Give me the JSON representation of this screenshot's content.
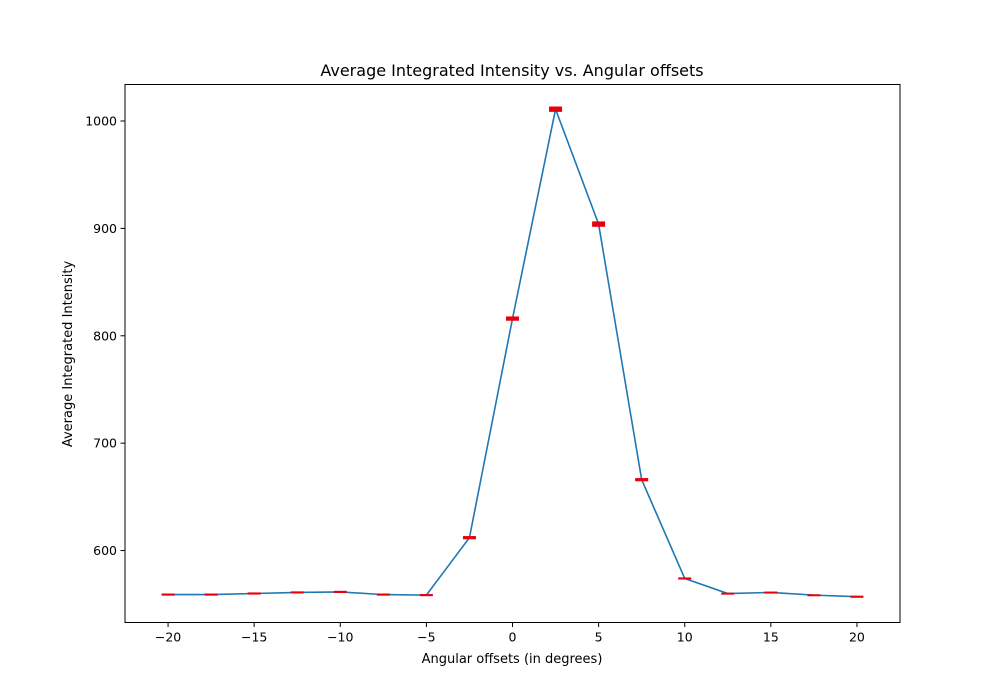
{
  "chart_data": {
    "type": "line",
    "title": "Average Integrated Intensity vs. Angular offsets",
    "xlabel": "Angular offsets (in degrees)",
    "ylabel": "Average Integrated Intensity",
    "xlim": [
      -22.5,
      22.5
    ],
    "ylim": [
      533,
      1034
    ],
    "x_ticks": [
      -20,
      -15,
      -10,
      -5,
      0,
      5,
      10,
      15,
      20
    ],
    "x_tick_labels": [
      "−20",
      "−15",
      "−10",
      "−5",
      "0",
      "5",
      "10",
      "15",
      "20"
    ],
    "y_ticks": [
      600,
      700,
      800,
      900,
      1000
    ],
    "y_tick_labels": [
      "600",
      "700",
      "800",
      "900",
      "1000"
    ],
    "grid": false,
    "line_color": "#1f77b4",
    "error_color": "#e8000b",
    "series": [
      {
        "x": [
          -20,
          -17.5,
          -15,
          -12.5,
          -10,
          -7.5,
          -5,
          -2.5,
          0,
          2.5,
          5,
          7.5,
          10,
          12.5,
          15,
          17.5,
          20
        ],
        "y": [
          559,
          559,
          560,
          561,
          561.5,
          559,
          558.5,
          612,
          816,
          1011,
          904,
          666,
          574,
          560,
          561,
          558.5,
          557
        ],
        "error": [
          1,
          1,
          1,
          1,
          1,
          1,
          1,
          1.5,
          2,
          2.5,
          2.5,
          1.5,
          1,
          0.8,
          0.8,
          0.8,
          1
        ]
      }
    ]
  }
}
